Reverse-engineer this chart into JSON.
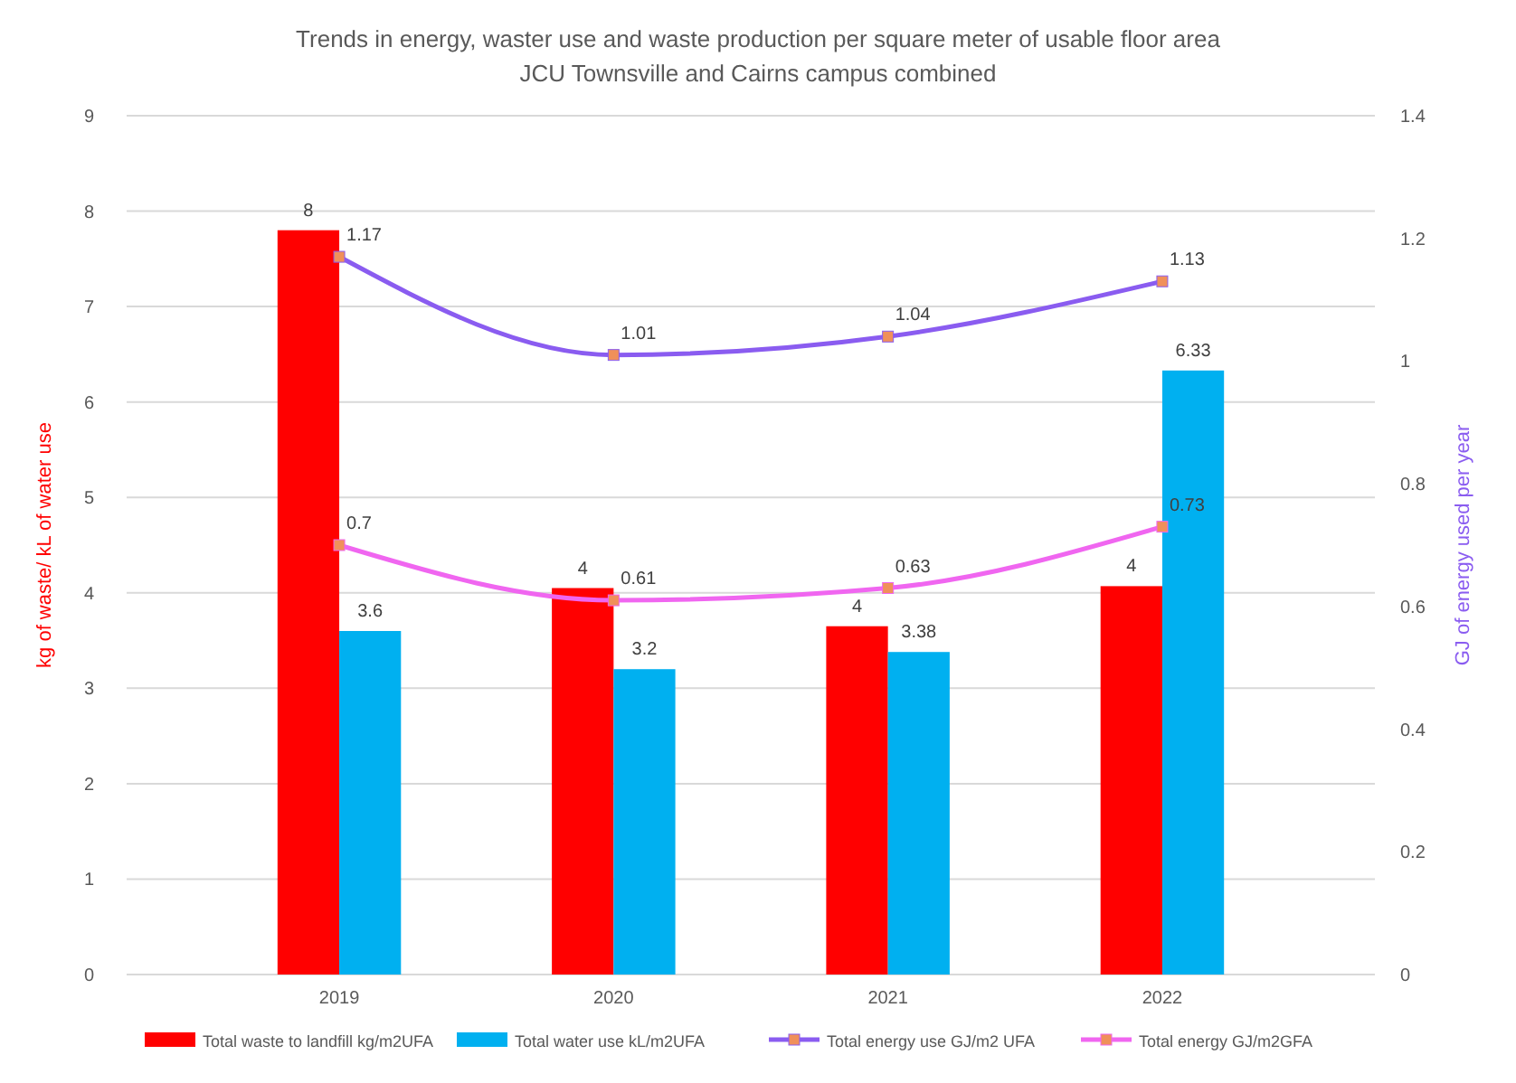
{
  "chart_data": {
    "type": "bar",
    "title": "Trends in energy, waster use and waste production per square meter of usable floor area",
    "subtitle": "JCU Townsville and Cairns campus combined",
    "ylabel": "kg of waste/ kL of water use",
    "y2label": "GJ of energy used per year",
    "categories": [
      "2019",
      "2020",
      "2021",
      "2022"
    ],
    "series": [
      {
        "name": "Total waste to landfill kg/m2UFA",
        "color": "#ff0000",
        "values": [
          7.8,
          4.05,
          3.65,
          4.07
        ],
        "value_labels": [
          "8",
          "4",
          "4",
          "4"
        ]
      },
      {
        "name": "Total water use kL/m2UFA",
        "color": "#00b0f0",
        "values": [
          3.6,
          3.2,
          3.38,
          6.33
        ],
        "value_labels": [
          "3.6",
          "3.2",
          "3.38",
          "6.33"
        ]
      },
      {
        "name": "Total energy use GJ/m2 UFA",
        "type": "line",
        "axis": "y2",
        "color": "#8a5cf0",
        "values": [
          1.17,
          1.01,
          1.04,
          1.13
        ],
        "value_labels": [
          "1.17",
          "1.01",
          "1.04",
          "1.13"
        ]
      },
      {
        "name": "Total energy GJ/m2GFA",
        "type": "line",
        "axis": "y2",
        "color": "#f066f0",
        "values": [
          0.7,
          0.61,
          0.63,
          0.73
        ],
        "value_labels": [
          "0.7",
          "0.61",
          "0.63",
          "0.73"
        ]
      }
    ],
    "ylim": [
      0,
      9
    ],
    "yticks": [
      0,
      1,
      2,
      3,
      4,
      5,
      6,
      7,
      8,
      9
    ],
    "y2lim": [
      0,
      1.4
    ],
    "y2ticks": [
      0,
      0.2,
      0.4,
      0.6,
      0.8,
      1,
      1.2,
      1.4
    ],
    "grid": "y",
    "legend": "bottom",
    "marker": "square",
    "line_style": "solid"
  }
}
